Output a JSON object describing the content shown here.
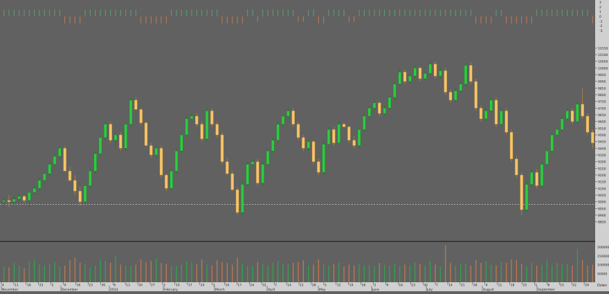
{
  "colors": {
    "background": "#616161",
    "bull": "#2ecc40",
    "bear": "#f6c46a",
    "vol_up": "#2fa84a",
    "vol_down": "#c87a4a",
    "ind_pos": "#5f9f70",
    "ind_neg": "#c8784f",
    "axis_bg": "#d0d0d0",
    "support_line": "#c9c9c9",
    "tick_text": "#222222"
  },
  "chart_data": [
    {
      "type": "candlestick",
      "title": "",
      "ylim": [
        8750,
        10250
      ],
      "y_ticks": [
        "10150",
        "10100",
        "10050",
        "10000",
        "9950",
        "9900",
        "9850",
        "9800",
        "9750",
        "9700",
        "9650",
        "9600",
        "9550",
        "9500",
        "9450",
        "9400",
        "9350",
        "9300",
        "9250",
        "9200",
        "9150",
        "9100",
        "9050",
        "9000",
        "8950",
        "8900",
        "8850"
      ],
      "support_level": 8980,
      "series": [
        {
          "points": [
            [
              9000,
              8940,
              9030,
              9010
            ],
            [
              9010,
              8960,
              9050,
              9000
            ],
            [
              9000,
              8980,
              9040,
              9020
            ],
            [
              9020,
              9000,
              9060,
              9040
            ],
            [
              9040,
              8990,
              9050,
              9010
            ],
            [
              9010,
              8950,
              9080,
              9070
            ],
            [
              9070,
              9050,
              9120,
              9100
            ],
            [
              9100,
              9080,
              9180,
              9160
            ],
            [
              9160,
              9140,
              9230,
              9210
            ],
            [
              9210,
              9190,
              9300,
              9280
            ],
            [
              9280,
              9260,
              9360,
              9340
            ],
            [
              9340,
              9320,
              9410,
              9400
            ],
            [
              9400,
              9380,
              9420,
              9230
            ],
            [
              9230,
              9150,
              9260,
              9160
            ],
            [
              9160,
              9050,
              9200,
              9080
            ],
            [
              9080,
              8970,
              9110,
              9000
            ],
            [
              9000,
              8980,
              9130,
              9120
            ],
            [
              9120,
              9100,
              9250,
              9230
            ],
            [
              9230,
              9210,
              9380,
              9360
            ],
            [
              9360,
              9340,
              9500,
              9480
            ],
            [
              9480,
              9460,
              9600,
              9580
            ],
            [
              9580,
              9440,
              9600,
              9460
            ],
            [
              9460,
              9400,
              9520,
              9500
            ],
            [
              9500,
              9380,
              9520,
              9400
            ],
            [
              9400,
              9380,
              9600,
              9580
            ],
            [
              9580,
              9560,
              9780,
              9760
            ],
            [
              9760,
              9740,
              9780,
              9690
            ],
            [
              9690,
              9570,
              9700,
              9590
            ],
            [
              9590,
              9560,
              9600,
              9420
            ],
            [
              9420,
              9330,
              9440,
              9350
            ],
            [
              9350,
              9330,
              9420,
              9400
            ],
            [
              9400,
              9180,
              9420,
              9200
            ],
            [
              9200,
              9080,
              9210,
              9100
            ],
            [
              9100,
              9080,
              9250,
              9230
            ],
            [
              9230,
              9210,
              9400,
              9380
            ],
            [
              9380,
              9360,
              9520,
              9500
            ],
            [
              9500,
              9480,
              9640,
              9620
            ],
            [
              9620,
              9600,
              9660,
              9640
            ],
            [
              9640,
              9560,
              9660,
              9580
            ],
            [
              9580,
              9450,
              9600,
              9470
            ],
            [
              9470,
              9450,
              9700,
              9680
            ],
            [
              9680,
              9560,
              9700,
              9580
            ],
            [
              9580,
              9480,
              9600,
              9500
            ],
            [
              9500,
              9280,
              9520,
              9300
            ],
            [
              9300,
              9200,
              9330,
              9210
            ],
            [
              9210,
              9080,
              9230,
              9090
            ],
            [
              9090,
              8900,
              9110,
              8920
            ],
            [
              8920,
              8900,
              9150,
              9130
            ],
            [
              9130,
              9110,
              9300,
              9280
            ],
            [
              9280,
              9260,
              9320,
              9300
            ],
            [
              9300,
              9120,
              9320,
              9140
            ],
            [
              9140,
              9120,
              9300,
              9280
            ],
            [
              9280,
              9260,
              9400,
              9380
            ],
            [
              9380,
              9360,
              9480,
              9460
            ],
            [
              9460,
              9440,
              9600,
              9580
            ],
            [
              9580,
              9560,
              9650,
              9640
            ],
            [
              9640,
              9620,
              9700,
              9680
            ],
            [
              9680,
              9560,
              9700,
              9580
            ],
            [
              9580,
              9460,
              9600,
              9480
            ],
            [
              9480,
              9380,
              9500,
              9400
            ],
            [
              9400,
              9380,
              9460,
              9450
            ],
            [
              9450,
              9280,
              9460,
              9300
            ],
            [
              9300,
              9200,
              9320,
              9220
            ],
            [
              9220,
              9200,
              9450,
              9430
            ],
            [
              9430,
              9410,
              9560,
              9540
            ],
            [
              9540,
              9420,
              9560,
              9440
            ],
            [
              9440,
              9420,
              9600,
              9580
            ],
            [
              9580,
              9560,
              9590,
              9560
            ],
            [
              9560,
              9440,
              9570,
              9460
            ],
            [
              9460,
              9400,
              9490,
              9420
            ],
            [
              9420,
              9400,
              9560,
              9540
            ],
            [
              9540,
              9520,
              9660,
              9640
            ],
            [
              9640,
              9620,
              9720,
              9700
            ],
            [
              9700,
              9680,
              9760,
              9740
            ],
            [
              9740,
              9640,
              9750,
              9660
            ],
            [
              9660,
              9640,
              9720,
              9700
            ],
            [
              9700,
              9680,
              9800,
              9780
            ],
            [
              9780,
              9760,
              9900,
              9880
            ],
            [
              9880,
              9860,
              9990,
              9970
            ],
            [
              9970,
              9880,
              9990,
              9900
            ],
            [
              9900,
              9880,
              9960,
              9940
            ],
            [
              9940,
              9920,
              10020,
              10000
            ],
            [
              10000,
              9900,
              10010,
              9920
            ],
            [
              9920,
              9900,
              9980,
              9960
            ],
            [
              9960,
              9940,
              10050,
              10030
            ],
            [
              10030,
              9920,
              10050,
              9940
            ],
            [
              9940,
              9920,
              10000,
              9980
            ],
            [
              9980,
              9800,
              10000,
              9820
            ],
            [
              9820,
              9740,
              9840,
              9760
            ],
            [
              9760,
              9740,
              9850,
              9830
            ],
            [
              9830,
              9810,
              9900,
              9880
            ],
            [
              9880,
              9860,
              10040,
              10020
            ],
            [
              10020,
              9880,
              10040,
              9900
            ],
            [
              9900,
              9680,
              9920,
              9700
            ],
            [
              9700,
              9600,
              9720,
              9620
            ],
            [
              9620,
              9600,
              9700,
              9680
            ],
            [
              9680,
              9660,
              9780,
              9760
            ],
            [
              9760,
              9560,
              9780,
              9580
            ],
            [
              9580,
              9560,
              9700,
              9680
            ],
            [
              9680,
              9500,
              9700,
              9520
            ],
            [
              9520,
              9300,
              9540,
              9320
            ],
            [
              9320,
              9180,
              9340,
              9200
            ],
            [
              9200,
              8900,
              9220,
              8940
            ],
            [
              8940,
              8920,
              9150,
              9130
            ],
            [
              9130,
              9110,
              9240,
              9220
            ],
            [
              9220,
              9100,
              9240,
              9120
            ],
            [
              9120,
              9100,
              9300,
              9280
            ],
            [
              9280,
              9260,
              9400,
              9380
            ],
            [
              9380,
              9360,
              9520,
              9500
            ],
            [
              9500,
              9480,
              9560,
              9540
            ],
            [
              9540,
              9520,
              9640,
              9620
            ],
            [
              9620,
              9600,
              9700,
              9680
            ],
            [
              9680,
              9580,
              9700,
              9600
            ],
            [
              9600,
              9580,
              9750,
              9730
            ],
            [
              9730,
              9620,
              9850,
              9640
            ],
            [
              9640,
              9500,
              9660,
              9520
            ],
            [
              9520,
              9400,
              9540,
              9440
            ]
          ]
        }
      ]
    },
    {
      "type": "bar",
      "title": "",
      "ylim": [
        0,
        220000
      ],
      "y_ticks": [
        "200000",
        "150000",
        "100000",
        "50000"
      ],
      "volume": [
        90000,
        85000,
        110000,
        95000,
        80000,
        120000,
        130000,
        100000,
        95000,
        105000,
        115000,
        90000,
        95000,
        125000,
        140000,
        110000,
        100000,
        85000,
        95000,
        130000,
        120000,
        110000,
        150000,
        100000,
        95000,
        90000,
        100000,
        130000,
        115000,
        120000,
        135000,
        110000,
        105000,
        90000,
        95000,
        100000,
        120000,
        110000,
        105000,
        130000,
        100000,
        95000,
        125000,
        115000,
        110000,
        100000,
        140000,
        105000,
        95000,
        90000,
        115000,
        100000,
        95000,
        110000,
        120000,
        105000,
        100000,
        110000,
        115000,
        125000,
        95000,
        100000,
        130000,
        100000,
        95000,
        105000,
        110000,
        90000,
        100000,
        95000,
        105000,
        95000,
        100000,
        90000,
        110000,
        100000,
        95000,
        105000,
        90000,
        100000,
        95000,
        110000,
        105000,
        95000,
        120000,
        100000,
        90000,
        210000,
        110000,
        95000,
        100000,
        105000,
        95000,
        125000,
        110000,
        120000,
        100000,
        95000,
        115000,
        110000,
        130000,
        125000,
        105000,
        90000,
        110000,
        95000,
        100000,
        130000,
        95000,
        110000,
        100000,
        105000,
        95000,
        190000,
        125000,
        95000,
        100000
      ]
    },
    {
      "type": "bar",
      "title": "",
      "ylim": [
        -3,
        3
      ],
      "y_ticks": [
        "3",
        "2",
        "1",
        "0",
        "-1",
        "-2",
        "-3"
      ],
      "indicator": [
        1.4,
        1.4,
        1.4,
        1.4,
        1.4,
        1.4,
        1.4,
        1.4,
        1.4,
        1.4,
        1.4,
        1.4,
        -1.5,
        -1.5,
        -1.5,
        -1.5,
        1.4,
        1.4,
        1.4,
        1.4,
        1.4,
        1.4,
        1.4,
        1.4,
        1.4,
        1.4,
        1.4,
        -1.5,
        -1.5,
        -1.5,
        -1.5,
        -1.5,
        -1.5,
        1.4,
        1.4,
        1.4,
        1.4,
        1.4,
        1.4,
        1.4,
        1.4,
        1.4,
        1.4,
        -1.5,
        -1.5,
        -1.5,
        -1.5,
        -1.5,
        1.4,
        1.4,
        -1.2,
        1.4,
        1.4,
        1.4,
        1.4,
        1.4,
        1.4,
        1.4,
        -1.2,
        -1.2,
        1.4,
        1.4,
        -1.5,
        -1.5,
        1.4,
        1.4,
        1.4,
        1.4,
        -1.2,
        -1.2,
        1.4,
        1.4,
        1.4,
        1.4,
        1.4,
        1.4,
        1.4,
        1.4,
        1.4,
        1.4,
        1.4,
        1.4,
        1.4,
        1.4,
        1.4,
        1.4,
        1.4,
        1.4,
        1.4,
        1.4,
        1.4,
        1.4,
        1.4,
        -1.5,
        -1.5,
        -1.5,
        -1.5,
        1.4,
        1.4,
        -1.5,
        -1.5,
        -1.5,
        -1.5,
        -1.5,
        -1.5,
        1.4,
        1.4,
        1.4,
        1.4,
        1.4,
        1.4,
        1.4,
        1.4,
        1.4,
        1.4,
        1.4,
        -1.5,
        -1.5,
        -1.5
      ]
    }
  ],
  "x_axis": {
    "date_ticks": [
      "4",
      "11",
      "18",
      "25",
      "2",
      "9",
      "16",
      "23",
      "30",
      "6",
      "13",
      "20",
      "27",
      "3",
      "10",
      "17",
      "24",
      "3",
      "10",
      "17",
      "24",
      "31",
      "7",
      "14",
      "21",
      "28",
      "5",
      "12",
      "19",
      "26",
      "2",
      "9",
      "16",
      "23",
      "30",
      "7",
      "14",
      "21",
      "28",
      "4",
      "11",
      "18",
      "25",
      "1",
      "8",
      "15",
      "22",
      "29"
    ],
    "month_labels": [
      "November",
      "December",
      "2014",
      "February",
      "March",
      "April",
      "May",
      "June",
      "July",
      "August",
      "September"
    ]
  },
  "corner_label": "Dzien"
}
